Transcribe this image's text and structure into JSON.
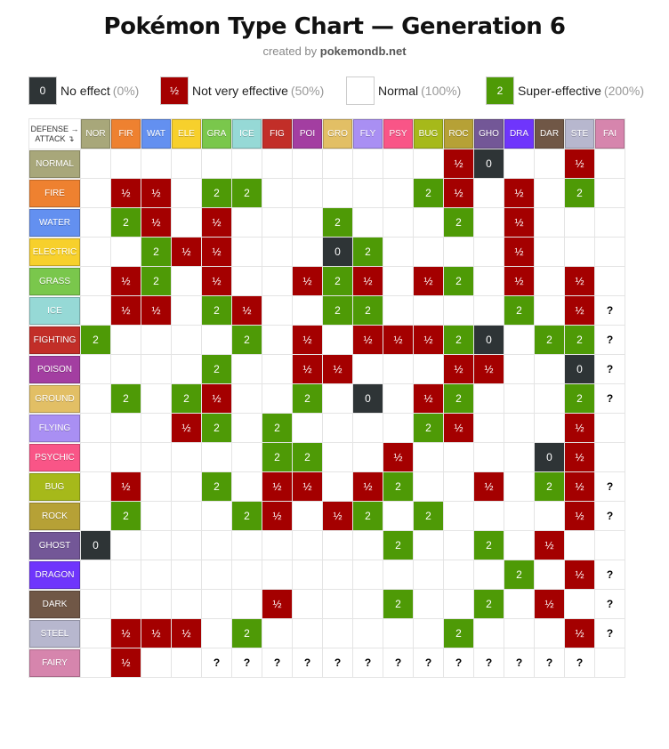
{
  "page": {
    "title": "Pokémon Type Chart — Generation 6",
    "subtitle_prefix": "created by ",
    "subtitle_site": "pokemondb.net",
    "corner_line1": "DEFENSE →",
    "corner_line2": "ATTACK ↴"
  },
  "legend": [
    {
      "key": "e0",
      "swatch": "0",
      "label": "No effect",
      "pct": "(0%)",
      "left": 32
    },
    {
      "key": "e05",
      "swatch": "½",
      "label": "Not very effective",
      "pct": "(50%)",
      "left": 180
    },
    {
      "key": "e1",
      "swatch": "",
      "label": "Normal",
      "pct": "(100%)",
      "left": 389
    },
    {
      "key": "e2",
      "swatch": "2",
      "label": "Super-effective",
      "pct": "(200%)",
      "left": 546
    }
  ],
  "colors": {
    "no_effect": "#2e3436",
    "not_very_effective": "#a40000",
    "super_effective": "#4e9a06"
  },
  "types": [
    {
      "abbr": "NOR",
      "name": "NORMAL",
      "color": "#a8a77a"
    },
    {
      "abbr": "FIR",
      "name": "FIRE",
      "color": "#ee8130"
    },
    {
      "abbr": "WAT",
      "name": "WATER",
      "color": "#6390f0"
    },
    {
      "abbr": "ELE",
      "name": "ELECTRIC",
      "color": "#f7d02c"
    },
    {
      "abbr": "GRA",
      "name": "GRASS",
      "color": "#7ac74c"
    },
    {
      "abbr": "ICE",
      "name": "ICE",
      "color": "#96d9d6"
    },
    {
      "abbr": "FIG",
      "name": "FIGHTING",
      "color": "#c22e28"
    },
    {
      "abbr": "POI",
      "name": "POISON",
      "color": "#a33ea1"
    },
    {
      "abbr": "GRO",
      "name": "GROUND",
      "color": "#e2bf65"
    },
    {
      "abbr": "FLY",
      "name": "FLYING",
      "color": "#a98ff3"
    },
    {
      "abbr": "PSY",
      "name": "PSYCHIC",
      "color": "#f95587"
    },
    {
      "abbr": "BUG",
      "name": "BUG",
      "color": "#a6b91a"
    },
    {
      "abbr": "ROC",
      "name": "ROCK",
      "color": "#b6a136"
    },
    {
      "abbr": "GHO",
      "name": "GHOST",
      "color": "#735797"
    },
    {
      "abbr": "DRA",
      "name": "DRAGON",
      "color": "#6f35fc"
    },
    {
      "abbr": "DAR",
      "name": "DARK",
      "color": "#705746"
    },
    {
      "abbr": "STE",
      "name": "STEEL",
      "color": "#b7b7ce"
    },
    {
      "abbr": "FAI",
      "name": "FAIRY",
      "color": "#d685ad"
    }
  ],
  "matrix": [
    [
      "",
      "",
      "",
      "",
      "",
      "",
      "",
      "",
      "",
      "",
      "",
      "",
      "½",
      "0",
      "",
      "",
      "½",
      ""
    ],
    [
      "",
      "½",
      "½",
      "",
      "2",
      "2",
      "",
      "",
      "",
      "",
      "",
      "2",
      "½",
      "",
      "½",
      "",
      "2",
      ""
    ],
    [
      "",
      "2",
      "½",
      "",
      "½",
      "",
      "",
      "",
      "2",
      "",
      "",
      "",
      "2",
      "",
      "½",
      "",
      "",
      ""
    ],
    [
      "",
      "",
      "2",
      "½",
      "½",
      "",
      "",
      "",
      "0",
      "2",
      "",
      "",
      "",
      "",
      "½",
      "",
      "",
      ""
    ],
    [
      "",
      "½",
      "2",
      "",
      "½",
      "",
      "",
      "½",
      "2",
      "½",
      "",
      "½",
      "2",
      "",
      "½",
      "",
      "½",
      ""
    ],
    [
      "",
      "½",
      "½",
      "",
      "2",
      "½",
      "",
      "",
      "2",
      "2",
      "",
      "",
      "",
      "",
      "2",
      "",
      "½",
      "?"
    ],
    [
      "2",
      "",
      "",
      "",
      "",
      "2",
      "",
      "½",
      "",
      "½",
      "½",
      "½",
      "2",
      "0",
      "",
      "2",
      "2",
      "?"
    ],
    [
      "",
      "",
      "",
      "",
      "2",
      "",
      "",
      "½",
      "½",
      "",
      "",
      "",
      "½",
      "½",
      "",
      "",
      "0",
      "?"
    ],
    [
      "",
      "2",
      "",
      "2",
      "½",
      "",
      "",
      "2",
      "",
      "0",
      "",
      "½",
      "2",
      "",
      "",
      "",
      "2",
      "?"
    ],
    [
      "",
      "",
      "",
      "½",
      "2",
      "",
      "2",
      "",
      "",
      "",
      "",
      "2",
      "½",
      "",
      "",
      "",
      "½",
      ""
    ],
    [
      "",
      "",
      "",
      "",
      "",
      "",
      "2",
      "2",
      "",
      "",
      "½",
      "",
      "",
      "",
      "",
      "0",
      "½",
      ""
    ],
    [
      "",
      "½",
      "",
      "",
      "2",
      "",
      "½",
      "½",
      "",
      "½",
      "2",
      "",
      "",
      "½",
      "",
      "2",
      "½",
      "?"
    ],
    [
      "",
      "2",
      "",
      "",
      "",
      "2",
      "½",
      "",
      "½",
      "2",
      "",
      "2",
      "",
      "",
      "",
      "",
      "½",
      "?"
    ],
    [
      "0",
      "",
      "",
      "",
      "",
      "",
      "",
      "",
      "",
      "",
      "2",
      "",
      "",
      "2",
      "",
      "½",
      "",
      ""
    ],
    [
      "",
      "",
      "",
      "",
      "",
      "",
      "",
      "",
      "",
      "",
      "",
      "",
      "",
      "",
      "2",
      "",
      "½",
      "?"
    ],
    [
      "",
      "",
      "",
      "",
      "",
      "",
      "½",
      "",
      "",
      "",
      "2",
      "",
      "",
      "2",
      "",
      "½",
      "",
      "?"
    ],
    [
      "",
      "½",
      "½",
      "½",
      "",
      "2",
      "",
      "",
      "",
      "",
      "",
      "",
      "2",
      "",
      "",
      "",
      "½",
      "?"
    ],
    [
      "",
      "½",
      "",
      "",
      "?",
      "?",
      "?",
      "?",
      "?",
      "?",
      "?",
      "?",
      "?",
      "?",
      "?",
      "?",
      "?",
      ""
    ]
  ]
}
